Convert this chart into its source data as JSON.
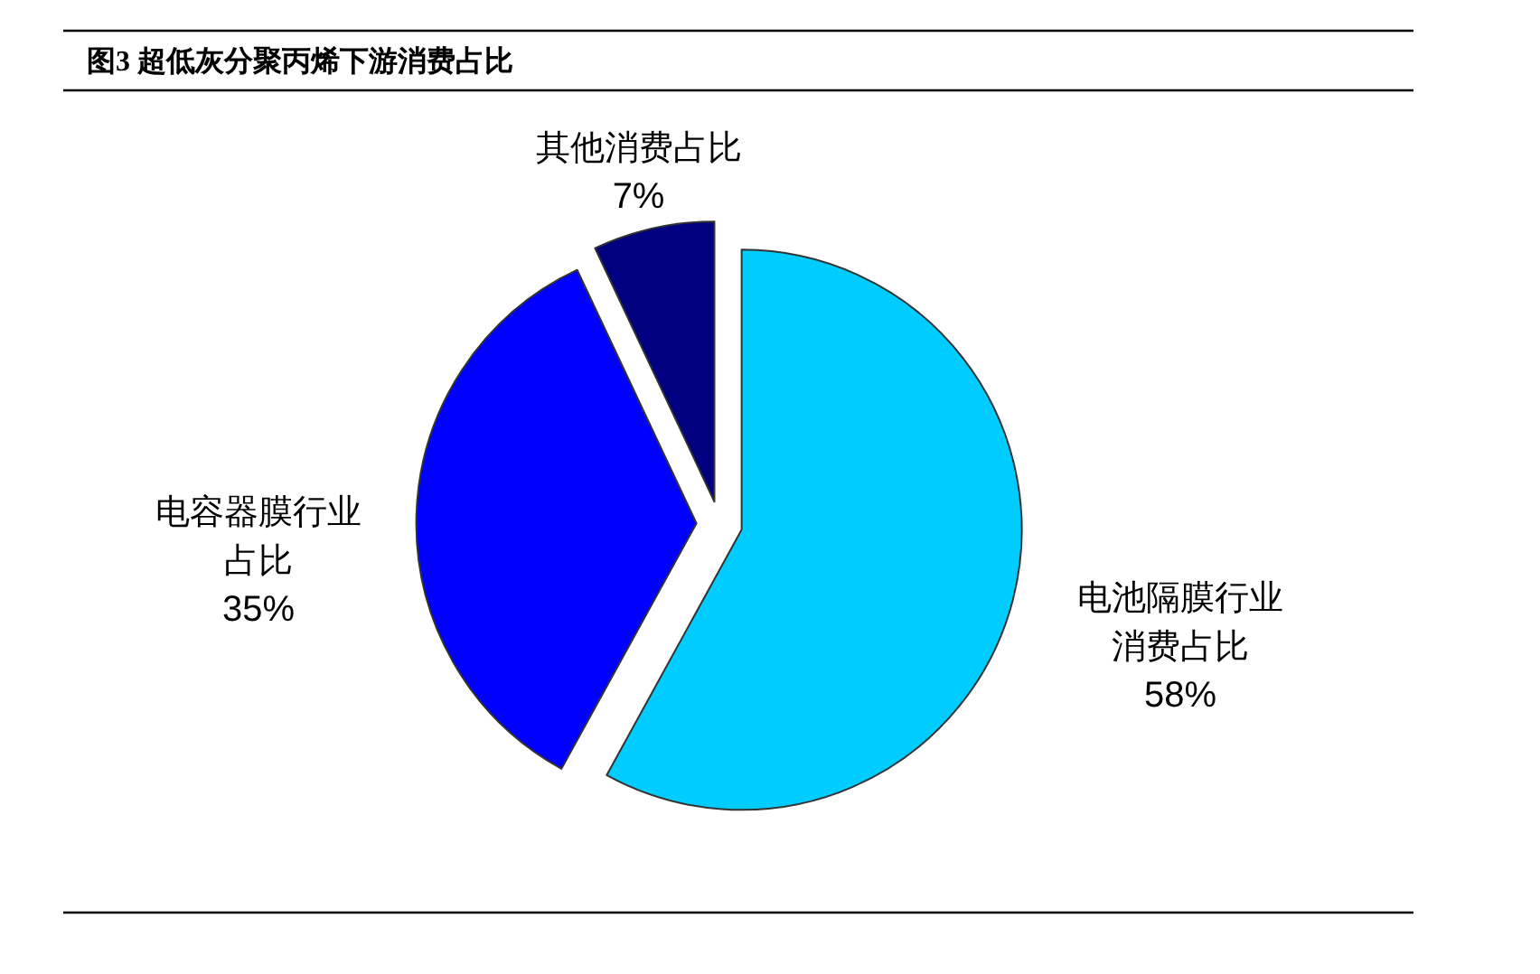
{
  "chart_data": {
    "type": "pie",
    "title": "图3 超低灰分聚丙烯下游消费占比",
    "categories": [
      "电池隔膜行业消费占比",
      "电容器膜行业占比",
      "其他消费占比"
    ],
    "values": [
      58,
      35,
      7
    ],
    "colors": [
      "#00ccff",
      "#0000ff",
      "#000080"
    ],
    "value_labels": [
      "58%",
      "35%",
      "7%"
    ]
  }
}
